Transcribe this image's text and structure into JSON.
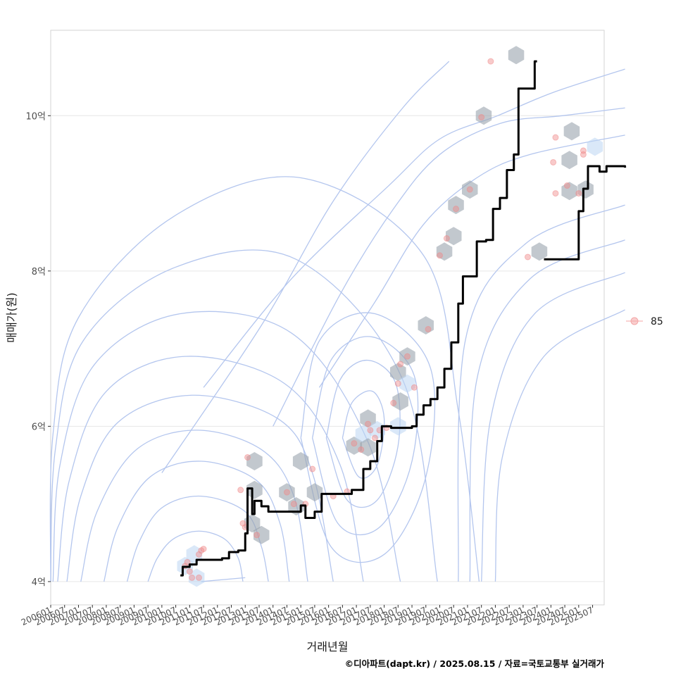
{
  "chart_data": {
    "type": "line",
    "xlabel": "거래년월",
    "ylabel": "매매가(원)",
    "caption": "©디아파트(dapt.kr) / 2025.08.15 / 자료=국토교통부 실거래가",
    "x_range": [
      "2006-01",
      "2025-12"
    ],
    "ylim": [
      3.7,
      11.1
    ],
    "y_ticks": [
      {
        "value": 4,
        "label": "4억"
      },
      {
        "value": 6,
        "label": "6억"
      },
      {
        "value": 8,
        "label": "8억"
      },
      {
        "value": 10,
        "label": "10억"
      }
    ],
    "x_ticks": [
      "200601",
      "200607",
      "200701",
      "200707",
      "200801",
      "200807",
      "200901",
      "200907",
      "201001",
      "201007",
      "201101",
      "201107",
      "201201",
      "201207",
      "201301",
      "201307",
      "201401",
      "201407",
      "201501",
      "201507",
      "201601",
      "201607",
      "201701",
      "201707",
      "201801",
      "201807",
      "201901",
      "201907",
      "202001",
      "202007",
      "202101",
      "202107",
      "202201",
      "202207",
      "202301",
      "202307",
      "202401",
      "202407",
      "202501",
      "202507"
    ],
    "grid": true,
    "legend": {
      "position": "right",
      "entries": [
        {
          "label": "85",
          "color": "#f4a6a6"
        }
      ]
    },
    "colors": {
      "line": "#000000",
      "points": "#f08a8a",
      "hex": "#9aa3ad",
      "hex_light": "#bcd6f2",
      "contour": "#b4c6ee"
    },
    "series": [
      {
        "type": "line",
        "points": [
          [
            "2010-09",
            4.08
          ],
          [
            "2010-10",
            4.19
          ],
          [
            "2011-01",
            4.22
          ],
          [
            "2011-04",
            4.28
          ],
          [
            "2012-03",
            4.3
          ],
          [
            "2012-06",
            4.38
          ],
          [
            "2012-10",
            4.4
          ],
          [
            "2013-01",
            4.62
          ],
          [
            "2013-02",
            5.2
          ],
          [
            "2013-04",
            4.87
          ],
          [
            "2013-05",
            5.04
          ],
          [
            "2013-08",
            4.97
          ],
          [
            "2013-11",
            4.9
          ],
          [
            "2014-10",
            4.9
          ],
          [
            "2015-01",
            4.98
          ],
          [
            "2015-03",
            4.82
          ],
          [
            "2015-07",
            4.9
          ],
          [
            "2015-10",
            5.13
          ],
          [
            "2016-08",
            5.13
          ],
          [
            "2016-11",
            5.18
          ],
          [
            "2017-04",
            5.45
          ],
          [
            "2017-07",
            5.55
          ],
          [
            "2017-10",
            5.81
          ],
          [
            "2017-12",
            6.0
          ],
          [
            "2018-04",
            5.98
          ],
          [
            "2018-10",
            5.98
          ],
          [
            "2019-01",
            6.0
          ],
          [
            "2019-03",
            6.15
          ],
          [
            "2019-06",
            6.27
          ],
          [
            "2019-09",
            6.35
          ],
          [
            "2019-12",
            6.5
          ],
          [
            "2020-03",
            6.74
          ],
          [
            "2020-06",
            7.08
          ],
          [
            "2020-09",
            7.58
          ],
          [
            "2020-11",
            7.93
          ],
          [
            "2021-02",
            7.93
          ],
          [
            "2021-05",
            8.38
          ],
          [
            "2021-09",
            8.4
          ],
          [
            "2021-12",
            8.8
          ],
          [
            "2022-03",
            8.94
          ],
          [
            "2022-06",
            9.3
          ],
          [
            "2022-09",
            9.5
          ],
          [
            "2022-11",
            10.35
          ],
          [
            "2023-04",
            10.35
          ],
          [
            "2023-06",
            10.7
          ],
          [
            "2023-07",
            10.7
          ]
        ]
      },
      {
        "type": "line",
        "points": [
          [
            "2023-10",
            8.15
          ],
          [
            "2024-11",
            8.15
          ],
          [
            "2025-01",
            8.77
          ],
          [
            "2025-03",
            9.06
          ],
          [
            "2025-05",
            9.35
          ],
          [
            "2025-08",
            9.35
          ],
          [
            "2025-10",
            9.28
          ],
          [
            "2026-01",
            9.35
          ],
          [
            "2026-09",
            9.33
          ]
        ]
      }
    ],
    "scatter": [
      [
        "2010-11",
        4.2
      ],
      [
        "2011-01",
        4.13
      ],
      [
        "2011-02",
        4.05
      ],
      [
        "2010-12",
        4.25
      ],
      [
        "2011-05",
        4.35
      ],
      [
        "2011-07",
        4.42
      ],
      [
        "2011-06",
        4.4
      ],
      [
        "2011-05",
        4.05
      ],
      [
        "2012-11",
        5.18
      ],
      [
        "2013-02",
        5.6
      ],
      [
        "2012-12",
        4.75
      ],
      [
        "2013-01",
        4.7
      ],
      [
        "2013-06",
        4.6
      ],
      [
        "2014-07",
        5.15
      ],
      [
        "2014-10",
        5.0
      ],
      [
        "2015-03",
        5.0
      ],
      [
        "2015-06",
        5.45
      ],
      [
        "2016-03",
        5.1
      ],
      [
        "2016-09",
        5.16
      ],
      [
        "2016-12",
        5.78
      ],
      [
        "2017-03",
        5.7
      ],
      [
        "2017-06",
        6.03
      ],
      [
        "2017-09",
        5.85
      ],
      [
        "2017-07",
        5.95
      ],
      [
        "2017-11",
        5.95
      ],
      [
        "2018-02",
        5.98
      ],
      [
        "2018-05",
        6.3
      ],
      [
        "2018-07",
        6.55
      ],
      [
        "2018-08",
        6.8
      ],
      [
        "2018-11",
        6.9
      ],
      [
        "2019-02",
        6.5
      ],
      [
        "2019-08",
        7.25
      ],
      [
        "2020-01",
        8.2
      ],
      [
        "2020-04",
        8.42
      ],
      [
        "2020-08",
        8.8
      ],
      [
        "2021-02",
        9.05
      ],
      [
        "2021-07",
        9.98
      ],
      [
        "2021-11",
        10.7
      ],
      [
        "2023-03",
        8.18
      ],
      [
        "2024-02",
        9.4
      ],
      [
        "2024-03",
        9.72
      ],
      [
        "2024-03",
        9.0
      ],
      [
        "2024-08",
        9.1
      ],
      [
        "2025-01",
        9.0
      ],
      [
        "2025-03",
        9.5
      ],
      [
        "2025-03",
        9.55
      ]
    ],
    "hex_bins": [
      [
        "2010-11",
        4.2,
        "light"
      ],
      [
        "2011-03",
        4.35,
        "light"
      ],
      [
        "2011-04",
        4.05,
        "light"
      ],
      [
        "2013-05",
        5.55,
        "dark"
      ],
      [
        "2013-05",
        5.18,
        "dark"
      ],
      [
        "2013-04",
        4.75,
        "dark"
      ],
      [
        "2013-08",
        4.6,
        "dark"
      ],
      [
        "2014-07",
        5.15,
        "dark"
      ],
      [
        "2014-11",
        4.97,
        "dark"
      ],
      [
        "2015-01",
        5.55,
        "dark"
      ],
      [
        "2015-07",
        5.15,
        "dark"
      ],
      [
        "2016-12",
        5.75,
        "dark"
      ],
      [
        "2017-04",
        5.9,
        "light"
      ],
      [
        "2017-06",
        6.1,
        "dark"
      ],
      [
        "2017-06",
        5.73,
        "dark"
      ],
      [
        "2017-10",
        5.95,
        "light"
      ],
      [
        "2018-07",
        6.0,
        "light"
      ],
      [
        "2018-08",
        6.32,
        "dark"
      ],
      [
        "2018-07",
        6.7,
        "dark"
      ],
      [
        "2018-11",
        6.55,
        "light"
      ],
      [
        "2018-11",
        6.9,
        "dark"
      ],
      [
        "2019-07",
        7.3,
        "dark"
      ],
      [
        "2020-03",
        8.25,
        "dark"
      ],
      [
        "2020-07",
        8.45,
        "dark"
      ],
      [
        "2020-08",
        8.85,
        "dark"
      ],
      [
        "2021-02",
        9.05,
        "dark"
      ],
      [
        "2021-08",
        10.0,
        "dark"
      ],
      [
        "2022-10",
        10.78,
        "dark"
      ],
      [
        "2023-08",
        8.25,
        "dark"
      ],
      [
        "2024-10",
        9.8,
        "dark"
      ],
      [
        "2024-09",
        9.43,
        "dark"
      ],
      [
        "2024-09",
        9.03,
        "dark"
      ],
      [
        "2025-04",
        9.05,
        "dark"
      ],
      [
        "2025-08",
        9.6,
        "light"
      ]
    ],
    "contours": [
      [
        [
          "2009-07",
          4.0
        ],
        [
          "2009-11",
          4.3
        ],
        [
          "2010-06",
          4.55
        ],
        [
          "2011-05",
          4.65
        ],
        [
          "2012-04",
          4.55
        ],
        [
          "2012-10",
          4.3
        ],
        [
          "2012-12",
          4.0
        ]
      ],
      [
        [
          "2008-10",
          4.0
        ],
        [
          "2009-03",
          4.5
        ],
        [
          "2010-01",
          4.95
        ],
        [
          "2011-06",
          5.1
        ],
        [
          "2013-01",
          4.9
        ],
        [
          "2013-08",
          4.45
        ],
        [
          "2013-11",
          4.0
        ]
      ],
      [
        [
          "2007-12",
          4.0
        ],
        [
          "2008-06",
          4.7
        ],
        [
          "2009-08",
          5.35
        ],
        [
          "2011-06",
          5.55
        ],
        [
          "2013-06",
          5.3
        ],
        [
          "2014-04",
          4.75
        ],
        [
          "2014-08",
          4.0
        ]
      ],
      [
        [
          "2007-02",
          4.0
        ],
        [
          "2007-09",
          4.9
        ],
        [
          "2009-02",
          5.7
        ],
        [
          "2011-04",
          5.95
        ],
        [
          "2013-08",
          5.7
        ],
        [
          "2014-10",
          5.1
        ],
        [
          "2015-04",
          4.0
        ]
      ],
      [
        [
          "2006-08",
          4.0
        ],
        [
          "2007-02",
          5.1
        ],
        [
          "2008-06",
          6.05
        ],
        [
          "2011-02",
          6.4
        ],
        [
          "2014-03",
          6.1
        ],
        [
          "2015-06",
          5.4
        ],
        [
          "2016-03",
          4.0
        ]
      ],
      [
        [
          "2006-04",
          4.0
        ],
        [
          "2006-09",
          5.3
        ],
        [
          "2008-01",
          6.45
        ],
        [
          "2010-11",
          6.9
        ],
        [
          "2014-06",
          6.55
        ],
        [
          "2016-06",
          5.5
        ],
        [
          "2017-04",
          4.0
        ]
      ],
      [
        [
          "2006-02",
          4.0
        ],
        [
          "2006-05",
          5.5
        ],
        [
          "2007-08",
          6.8
        ],
        [
          "2010-09",
          7.45
        ],
        [
          "2014-09",
          7.2
        ],
        [
          "2017-06",
          5.8
        ],
        [
          "2018-08",
          4.0
        ]
      ],
      [
        [
          "2006-01",
          4.0
        ],
        [
          "2006-03",
          5.7
        ],
        [
          "2007-03",
          7.1
        ],
        [
          "2010-07",
          8.05
        ],
        [
          "2014-11",
          8.15
        ],
        [
          "2018-09",
          6.6
        ],
        [
          "2019-12",
          4.0
        ]
      ],
      [
        [
          "2006-01",
          4.0
        ],
        [
          "2006-02",
          5.9
        ],
        [
          "2007-01",
          7.4
        ],
        [
          "2010-06",
          8.7
        ],
        [
          "2015-01",
          9.2
        ],
        [
          "2019-06",
          8.2
        ],
        [
          "2020-09",
          6.2
        ],
        [
          "2021-06",
          4.0
        ]
      ],
      [
        [
          "2011-06",
          4.0
        ],
        [
          "2013-01",
          4.05
        ]
      ],
      [
        [
          "2016-07",
          5.85
        ],
        [
          "2017-02",
          5.35
        ],
        [
          "2017-10",
          5.5
        ],
        [
          "2018-01",
          6.1
        ],
        [
          "2017-08",
          6.45
        ],
        [
          "2016-11",
          6.3
        ],
        [
          "2016-07",
          5.85
        ]
      ],
      [
        [
          "2015-12",
          5.85
        ],
        [
          "2016-09",
          5.05
        ],
        [
          "2017-10",
          5.05
        ],
        [
          "2018-07",
          5.75
        ],
        [
          "2018-06",
          6.55
        ],
        [
          "2017-06",
          6.85
        ],
        [
          "2016-06",
          6.6
        ],
        [
          "2015-12",
          5.85
        ]
      ],
      [
        [
          "2015-06",
          5.85
        ],
        [
          "2016-05",
          4.75
        ],
        [
          "2017-11",
          4.7
        ],
        [
          "2019-01",
          5.55
        ],
        [
          "2019-02",
          6.65
        ],
        [
          "2017-08",
          7.15
        ],
        [
          "2016-02",
          6.85
        ],
        [
          "2015-06",
          5.85
        ]
      ],
      [
        [
          "2015-01",
          5.85
        ],
        [
          "2016-02",
          4.45
        ],
        [
          "2018-01",
          4.35
        ],
        [
          "2019-07",
          5.35
        ],
        [
          "2019-09",
          6.75
        ],
        [
          "2017-09",
          7.45
        ],
        [
          "2015-09",
          7.1
        ],
        [
          "2015-01",
          5.85
        ]
      ],
      [
        [
          "2022-01",
          4.0
        ],
        [
          "2022-04",
          5.6
        ],
        [
          "2023-10",
          6.9
        ],
        [
          "2026-09",
          7.5
        ]
      ],
      [
        [
          "2021-07",
          4.0
        ],
        [
          "2021-11",
          6.1
        ],
        [
          "2023-06",
          7.45
        ],
        [
          "2026-09",
          7.98
        ]
      ],
      [
        [
          "2021-02",
          4.0
        ],
        [
          "2021-05",
          6.6
        ],
        [
          "2023-04",
          7.9
        ],
        [
          "2026-09",
          8.4
        ]
      ],
      [
        [
          "2020-09",
          4.0
        ],
        [
          "2020-12",
          7.1
        ],
        [
          "2023-02",
          8.35
        ],
        [
          "2026-09",
          8.85
        ]
      ],
      [
        [
          "2011-07",
          6.5
        ],
        [
          "2014-09",
          7.9
        ],
        [
          "2018-03",
          9.1
        ],
        [
          "2020-01",
          9.7
        ],
        [
          "2022-02",
          10.0
        ],
        [
          "2024-02",
          10.3
        ],
        [
          "2026-09",
          10.6
        ]
      ],
      [
        [
          "2010-01",
          5.4
        ],
        [
          "2013-08",
          7.3
        ],
        [
          "2016-03",
          8.9
        ],
        [
          "2018-09",
          10.1
        ],
        [
          "2020-05",
          10.7
        ]
      ],
      [
        [
          "2014-01",
          6.0
        ],
        [
          "2016-06",
          7.7
        ],
        [
          "2018-05",
          8.8
        ],
        [
          "2020-01",
          9.5
        ],
        [
          "2022-03",
          9.9
        ],
        [
          "2024-06",
          10.0
        ],
        [
          "2026-09",
          10.1
        ]
      ],
      [
        [
          "2015-09",
          6.5
        ],
        [
          "2017-09",
          7.6
        ],
        [
          "2019-06",
          8.6
        ],
        [
          "2021-05",
          9.2
        ],
        [
          "2023-04",
          9.5
        ],
        [
          "2026-09",
          9.75
        ]
      ]
    ]
  }
}
